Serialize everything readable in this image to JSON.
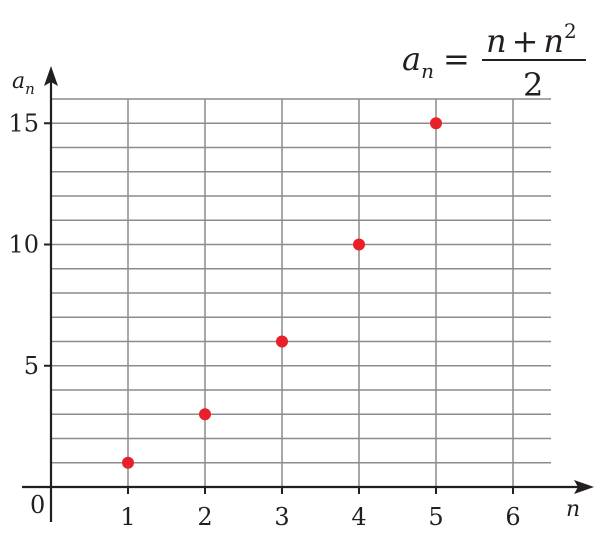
{
  "chart_data": {
    "type": "scatter",
    "title": "",
    "formula": {
      "lhs_symbol": "a",
      "lhs_subscript": "n",
      "equals": "=",
      "numerator_left": "n",
      "numerator_plus": "+",
      "numerator_right": "n",
      "numerator_exponent": "2",
      "denominator": "2"
    },
    "xlabel": "n",
    "ylabel_symbol": "a",
    "ylabel_subscript": "n",
    "origin_label": "0",
    "x_ticks": [
      1,
      2,
      3,
      4,
      5,
      6
    ],
    "y_ticks": [
      5,
      10,
      15
    ],
    "xlim": [
      0,
      6.5
    ],
    "ylim": [
      0,
      16
    ],
    "grid": true,
    "marker_color": "#e8202a",
    "grid_color": "#8c8c8c",
    "axis_color": "#231f20",
    "series": [
      {
        "x": [
          1,
          2,
          3,
          4,
          5
        ],
        "y": [
          1,
          3,
          6,
          10,
          15
        ]
      }
    ]
  }
}
